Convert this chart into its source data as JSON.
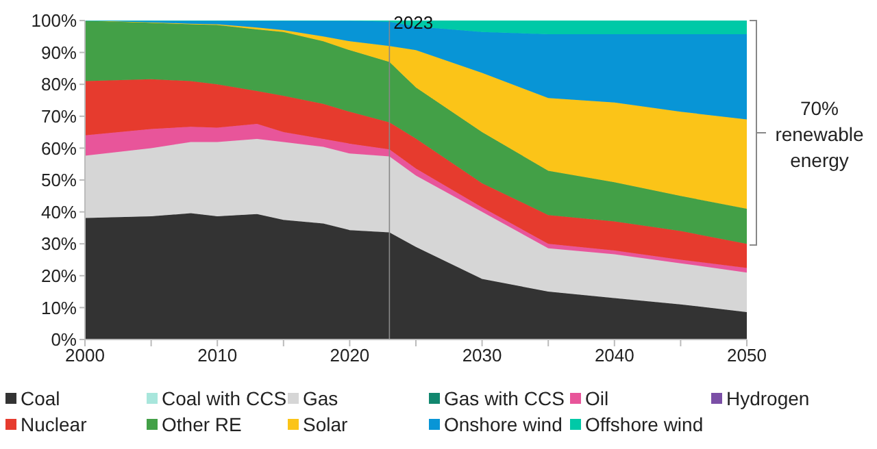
{
  "chart_data": {
    "type": "area",
    "stacked": true,
    "x": [
      2000,
      2005,
      2008,
      2010,
      2013,
      2015,
      2018,
      2020,
      2023,
      2025,
      2030,
      2035,
      2040,
      2045,
      2050
    ],
    "series": [
      {
        "name": "Coal",
        "color": "#333333",
        "values": [
          38.1,
          38.6,
          39.6,
          38.6,
          39.3,
          37.5,
          36.4,
          34.3,
          33.6,
          29,
          19,
          15,
          13,
          11,
          8.6
        ]
      },
      {
        "name": "Coal with CCS",
        "color": "#a8e6dc",
        "values": [
          null,
          null,
          null,
          null,
          null,
          null,
          null,
          null,
          null,
          null,
          null,
          null,
          null,
          null,
          null
        ]
      },
      {
        "name": "Gas",
        "color": "#d6d6d6",
        "values": [
          19.5,
          21.4,
          22.3,
          23.3,
          23.6,
          24.4,
          24,
          24,
          23.8,
          22.4,
          21,
          13.6,
          13.7,
          12.9,
          12.4
        ]
      },
      {
        "name": "Gas with CCS",
        "color": "#12876f",
        "values": [
          null,
          null,
          null,
          null,
          null,
          null,
          null,
          null,
          null,
          null,
          null,
          null,
          null,
          null,
          null
        ]
      },
      {
        "name": "Oil",
        "color": "#e8559a",
        "values": [
          6.4,
          6,
          4.8,
          4.5,
          4.7,
          3.1,
          2.5,
          3.1,
          2.2,
          2.2,
          1.4,
          1.4,
          1.2,
          1.1,
          1.4
        ]
      },
      {
        "name": "Hydrogen",
        "color": "#7b4fa6",
        "values": [
          null,
          null,
          null,
          null,
          null,
          null,
          null,
          null,
          null,
          null,
          null,
          null,
          null,
          null,
          null
        ]
      },
      {
        "name": "Nuclear",
        "color": "#e63b2e",
        "values": [
          17,
          15.6,
          14.3,
          13.6,
          10.3,
          11.4,
          11,
          10,
          8.5,
          9.4,
          7.6,
          9,
          9.1,
          9,
          7.6
        ]
      },
      {
        "name": "Other RE",
        "color": "#43a047",
        "values": [
          19,
          17.7,
          17.8,
          18.6,
          19.3,
          20,
          19.6,
          19.3,
          18.9,
          16,
          16,
          13.9,
          12.3,
          11,
          11
        ]
      },
      {
        "name": "Solar",
        "color": "#fbc418",
        "values": [
          0,
          0.1,
          0.2,
          0.2,
          0.6,
          0.6,
          1.5,
          2.8,
          5,
          11.7,
          18.6,
          22.8,
          25,
          26.4,
          28
        ]
      },
      {
        "name": "Onshore wind",
        "color": "#0895d6",
        "values": [
          0,
          0.6,
          1,
          1.2,
          2.2,
          3,
          5,
          6.5,
          7.6,
          7.4,
          12.8,
          20,
          21.4,
          24.3,
          26.7
        ]
      },
      {
        "name": "Offshore wind",
        "color": "#00c9a7",
        "values": [
          0,
          0,
          0,
          0,
          0,
          0,
          0,
          0,
          0.4,
          1.9,
          3.6,
          4.3,
          4.3,
          4.3,
          4.3
        ]
      }
    ],
    "xlim": [
      2000,
      2050
    ],
    "xticks": [
      2000,
      {
        "value": 2005,
        "label": null
      },
      2010,
      {
        "value": 2015,
        "label": null
      },
      2020,
      {
        "value": 2025,
        "label": null
      },
      2030,
      {
        "value": 2035,
        "label": null
      },
      2040,
      {
        "value": 2045,
        "label": null
      },
      2050
    ],
    "ylim": [
      0,
      100
    ],
    "yticks": [
      {
        "value": 0,
        "label": "0%"
      },
      {
        "value": 10,
        "label": "10%"
      },
      {
        "value": 20,
        "label": "20%"
      },
      {
        "value": 30,
        "label": "30%"
      },
      {
        "value": 40,
        "label": "40%"
      },
      {
        "value": 50,
        "label": "50%"
      },
      {
        "value": 60,
        "label": "60%"
      },
      {
        "value": 70,
        "label": "70%"
      },
      {
        "value": 80,
        "label": "80%"
      },
      {
        "value": 90,
        "label": "90%"
      },
      {
        "value": 100,
        "label": "100%"
      }
    ],
    "ref_lines": [
      {
        "axis": "x",
        "value": 2023,
        "label": "2023",
        "color": "#888888"
      }
    ],
    "annotations": [
      "70% renewable energy"
    ],
    "legend": "bottom",
    "grid": false,
    "marker": "none"
  }
}
